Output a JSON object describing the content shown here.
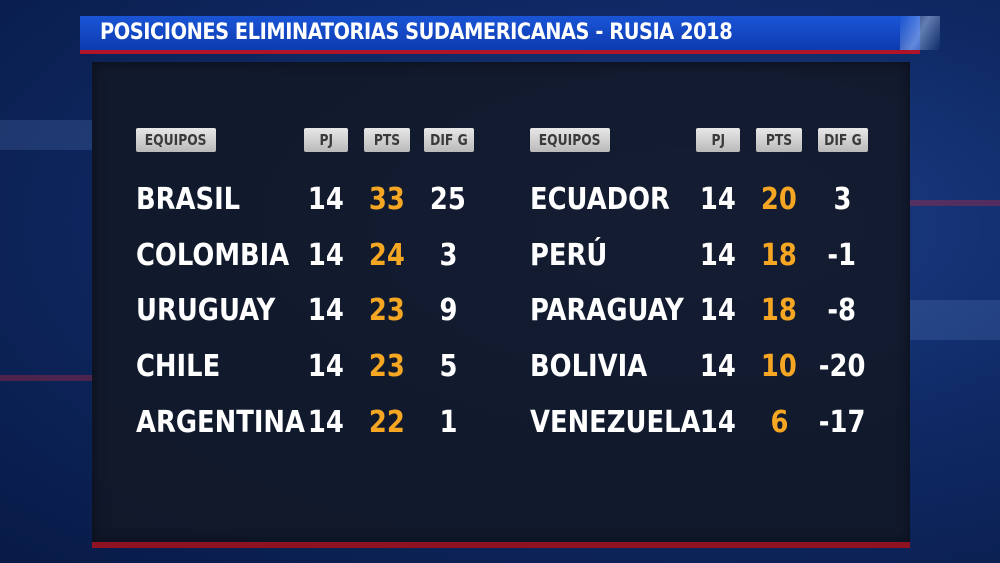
{
  "title": "POSICIONES ELIMINATORIAS SUDAMERICANAS - RUSIA 2018",
  "headers": {
    "team": "EQUIPOS",
    "played": "PJ",
    "points": "PTS",
    "goal_diff": "DIF G"
  },
  "left_table": [
    {
      "team": "BRASIL",
      "pj": "14",
      "pts": "33",
      "dif": "25"
    },
    {
      "team": "COLOMBIA",
      "pj": "14",
      "pts": "24",
      "dif": "3"
    },
    {
      "team": "URUGUAY",
      "pj": "14",
      "pts": "23",
      "dif": "9"
    },
    {
      "team": "CHILE",
      "pj": "14",
      "pts": "23",
      "dif": "5"
    },
    {
      "team": "ARGENTINA",
      "pj": "14",
      "pts": "22",
      "dif": "1"
    }
  ],
  "right_table": [
    {
      "team": "ECUADOR",
      "pj": "14",
      "pts": "20",
      "dif": "3"
    },
    {
      "team": "PERÚ",
      "pj": "14",
      "pts": "18",
      "dif": "-1"
    },
    {
      "team": "PARAGUAY",
      "pj": "14",
      "pts": "18",
      "dif": "-8"
    },
    {
      "team": "BOLIVIA",
      "pj": "14",
      "pts": "10",
      "dif": "-20"
    },
    {
      "team": "VENEZUELA",
      "pj": "14",
      "pts": "6",
      "dif": "-17"
    }
  ],
  "colors": {
    "title_bar": "#1a55d6",
    "accent_red": "#b01428",
    "points": "#f5a623",
    "text": "#ffffff",
    "panel": "#121826"
  }
}
